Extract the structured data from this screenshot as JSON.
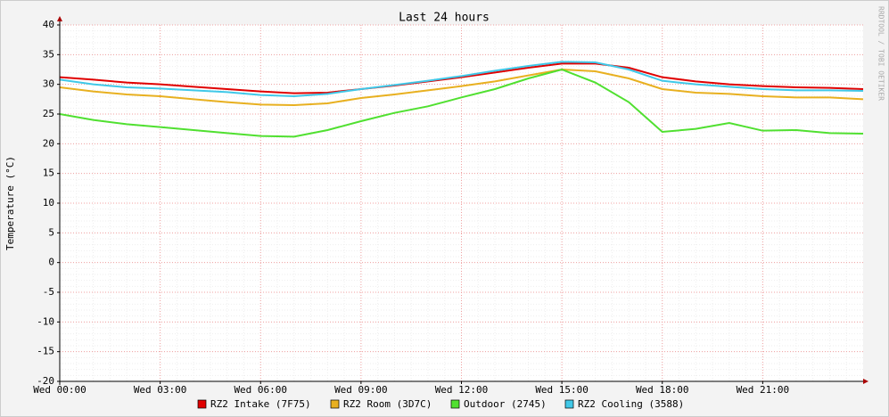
{
  "chart_data": {
    "type": "line",
    "title": "Last 24 hours",
    "y_label": "Temperature (°C)",
    "credit": "RRDTOOL / TOBI OETIKER",
    "x": [
      0,
      1,
      2,
      3,
      4,
      5,
      6,
      7,
      8,
      9,
      10,
      11,
      12,
      13,
      14,
      15,
      16,
      17,
      18,
      19,
      20,
      21,
      22,
      23,
      24
    ],
    "xlim": [
      0,
      24
    ],
    "xticks": [
      {
        "value": 0,
        "label": "Wed 00:00"
      },
      {
        "value": 3,
        "label": "Wed 03:00"
      },
      {
        "value": 6,
        "label": "Wed 06:00"
      },
      {
        "value": 9,
        "label": "Wed 09:00"
      },
      {
        "value": 12,
        "label": "Wed 12:00"
      },
      {
        "value": 15,
        "label": "Wed 15:00"
      },
      {
        "value": 18,
        "label": "Wed 18:00"
      },
      {
        "value": 21,
        "label": "Wed 21:00"
      }
    ],
    "ylim": [
      -20,
      40
    ],
    "yticks": [
      -20,
      -15,
      -10,
      -5,
      0,
      5,
      10,
      15,
      20,
      25,
      30,
      35,
      40
    ],
    "grid": true,
    "series": [
      {
        "name": "RZ2 Intake (7F75)",
        "color": "#e00000",
        "values": [
          31.2,
          30.8,
          30.3,
          30,
          29.6,
          29.2,
          28.8,
          28.5,
          28.6,
          29.2,
          29.8,
          30.5,
          31.2,
          32,
          32.8,
          33.5,
          33.5,
          32.8,
          31.2,
          30.5,
          30,
          29.7,
          29.5,
          29.4,
          29.2
        ]
      },
      {
        "name": "RZ2 Room (3D7C)",
        "color": "#e8b020",
        "values": [
          29.5,
          28.8,
          28.3,
          28,
          27.5,
          27,
          26.6,
          26.5,
          26.8,
          27.7,
          28.3,
          29,
          29.7,
          30.5,
          31.5,
          32.5,
          32.2,
          31,
          29.2,
          28.6,
          28.4,
          28,
          27.8,
          27.8,
          27.5
        ]
      },
      {
        "name": "Outdoor (2745)",
        "color": "#50e030",
        "values": [
          25,
          24,
          23.3,
          22.8,
          22.3,
          21.8,
          21.3,
          21.2,
          22.3,
          23.8,
          25.2,
          26.3,
          27.8,
          29.2,
          31,
          32.5,
          30.3,
          27,
          22,
          22.5,
          23.5,
          22.2,
          22.3,
          21.8,
          21.7
        ]
      },
      {
        "name": "RZ2 Cooling (3588)",
        "color": "#40c8e8",
        "values": [
          30.8,
          30,
          29.5,
          29.3,
          29,
          28.7,
          28.2,
          28,
          28.4,
          29.2,
          29.9,
          30.6,
          31.4,
          32.3,
          33.1,
          33.8,
          33.7,
          32.5,
          30.6,
          30,
          29.6,
          29.2,
          29,
          29,
          28.9
        ]
      }
    ]
  }
}
